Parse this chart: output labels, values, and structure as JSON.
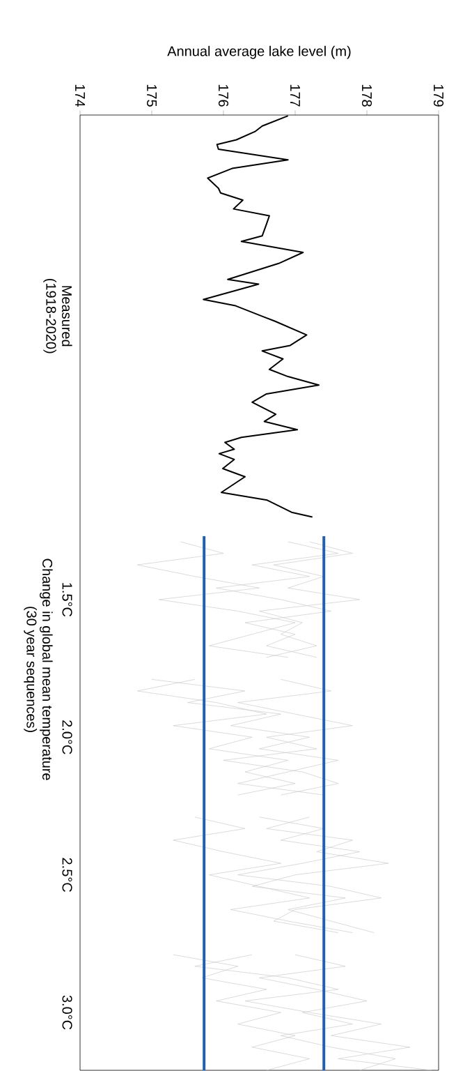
{
  "chart_data": {
    "type": "line",
    "xlabel": "Annual average lake level (m)",
    "ylabel": "Change in global mean temperature (30 year sequences)",
    "xlim": [
      174,
      179
    ],
    "xticks": [
      174,
      175,
      176,
      177,
      178,
      179
    ],
    "ylim": [
      3.21,
      -0.26
    ],
    "yticks": [
      {
        "value": 0.47,
        "label": "Measured (1918-2020)"
      },
      {
        "value": 1.5,
        "label": "1.5°C"
      },
      {
        "value": 2.0,
        "label": "2.0°C"
      },
      {
        "value": 2.5,
        "label": "2.5°C"
      },
      {
        "value": 3.0,
        "label": "3.0°C"
      }
    ],
    "series": [
      {
        "color": "#c8c8c8",
        "values": [
          1.29,
          1.332,
          1.374,
          1.416,
          1.458,
          1.5,
          1.542,
          1.584,
          1.626,
          1.668,
          1.71
        ],
        "x": [
          176.9,
          177.6,
          176.4,
          177.2,
          175.9,
          176.8,
          177.5,
          176.3,
          177.0,
          176.6,
          177.3
        ]
      },
      {
        "color": "#c8c8c8",
        "values": [
          1.29,
          1.332,
          1.374,
          1.416,
          1.458,
          1.5,
          1.542,
          1.584,
          1.626,
          1.668,
          1.71
        ],
        "x": [
          175.4,
          176.0,
          174.8,
          175.6,
          176.5,
          175.1,
          176.2,
          177.0,
          176.4,
          175.8,
          176.9
        ]
      },
      {
        "color": "#c8c8c8",
        "values": [
          1.29,
          1.332,
          1.374,
          1.416,
          1.458,
          1.5,
          1.542,
          1.584,
          1.626,
          1.668,
          1.71
        ],
        "x": [
          177.2,
          177.8,
          176.7,
          177.4,
          176.9,
          177.9,
          176.5,
          177.1,
          176.8,
          177.3,
          176.6
        ]
      },
      {
        "color": "#c8c8c8",
        "values": [
          1.79,
          1.832,
          1.874,
          1.916,
          1.958,
          2.0,
          2.042,
          2.084,
          2.126,
          2.168,
          2.21
        ],
        "x": [
          175.0,
          176.3,
          175.5,
          176.8,
          176.1,
          177.2,
          176.5,
          177.6,
          176.9,
          176.2,
          177.4
        ]
      },
      {
        "color": "#c8c8c8",
        "values": [
          1.79,
          1.832,
          1.874,
          1.916,
          1.958,
          2.0,
          2.042,
          2.084,
          2.126,
          2.168,
          2.21
        ],
        "x": [
          176.8,
          177.5,
          176.2,
          177.0,
          177.8,
          176.6,
          177.3,
          176.0,
          177.1,
          177.6,
          176.8
        ]
      },
      {
        "color": "#c8c8c8",
        "values": [
          1.79,
          1.832,
          1.874,
          1.916,
          1.958,
          2.0,
          2.042,
          2.084,
          2.126,
          2.168,
          2.21
        ],
        "x": [
          175.6,
          174.8,
          175.9,
          176.6,
          175.3,
          176.4,
          175.8,
          176.9,
          176.3,
          177.0,
          176.2
        ]
      },
      {
        "color": "#c8c8c8",
        "values": [
          2.29,
          2.332,
          2.374,
          2.416,
          2.458,
          2.5,
          2.542,
          2.584,
          2.626,
          2.668,
          2.71
        ],
        "x": [
          176.5,
          177.4,
          176.8,
          177.9,
          177.1,
          176.2,
          177.5,
          178.2,
          177.0,
          176.7,
          177.6
        ]
      },
      {
        "color": "#c8c8c8",
        "values": [
          2.29,
          2.332,
          2.374,
          2.416,
          2.458,
          2.5,
          2.542,
          2.584,
          2.626,
          2.668,
          2.71
        ],
        "x": [
          175.6,
          176.3,
          175.3,
          176.0,
          176.8,
          175.8,
          176.5,
          177.2,
          176.1,
          176.9,
          177.8
        ]
      },
      {
        "color": "#c8c8c8",
        "values": [
          2.29,
          2.332,
          2.374,
          2.416,
          2.458,
          2.5,
          2.542,
          2.584,
          2.626,
          2.668,
          2.71
        ],
        "x": [
          177.2,
          176.6,
          177.8,
          177.3,
          178.3,
          177.0,
          176.4,
          177.7,
          176.9,
          177.5,
          178.1
        ]
      },
      {
        "color": "#c8c8c8",
        "values": [
          2.79,
          2.832,
          2.874,
          2.916,
          2.958,
          3.0,
          3.042,
          3.084,
          3.126,
          3.168,
          3.21
        ],
        "x": [
          175.3,
          176.2,
          175.7,
          176.6,
          175.9,
          176.8,
          176.2,
          177.0,
          176.4,
          177.2,
          176.6
        ]
      },
      {
        "color": "#c8c8c8",
        "values": [
          2.79,
          2.832,
          2.874,
          2.916,
          2.958,
          3.0,
          3.042,
          3.084,
          3.126,
          3.168,
          3.21
        ],
        "x": [
          177.0,
          177.7,
          176.5,
          177.3,
          178.0,
          177.1,
          177.8,
          176.8,
          177.5,
          178.4,
          177.9
        ]
      },
      {
        "color": "#c8c8c8",
        "values": [
          2.79,
          2.832,
          2.874,
          2.916,
          2.958,
          3.0,
          3.042,
          3.084,
          3.126,
          3.168,
          3.21
        ],
        "x": [
          176.4,
          175.6,
          176.9,
          177.6,
          176.3,
          177.2,
          178.2,
          177.5,
          178.6,
          177.6,
          178.9
        ]
      },
      {
        "color": "#000000",
        "values": [
          -0.257,
          -0.22,
          -0.2,
          -0.17,
          -0.153,
          -0.136,
          -0.097,
          -0.066,
          -0.031,
          0.006,
          0.023,
          0.049,
          0.081,
          0.106,
          0.136,
          0.179,
          0.199,
          0.239,
          0.279,
          0.337,
          0.354,
          0.41,
          0.433,
          0.471,
          0.489,
          0.539,
          0.577,
          0.597,
          0.626,
          0.664,
          0.69,
          0.721,
          0.753,
          0.783,
          0.827,
          0.853,
          0.883,
          0.911,
          0.929,
          0.954,
          0.97,
          0.991,
          1.024,
          1.054,
          1.111,
          1.139,
          1.183,
          1.2
        ],
        "x": [
          176.9,
          176.54,
          176.44,
          176.18,
          175.91,
          175.93,
          176.9,
          176.12,
          175.78,
          175.93,
          175.96,
          176.27,
          176.14,
          176.64,
          176.6,
          176.54,
          176.25,
          177.11,
          176.77,
          176.06,
          176.49,
          175.72,
          176.17,
          176.54,
          176.72,
          177.16,
          176.93,
          176.54,
          176.83,
          176.64,
          176.9,
          177.33,
          176.6,
          176.4,
          176.73,
          176.57,
          177.03,
          176.25,
          176.02,
          176.15,
          175.94,
          176.15,
          175.99,
          176.3,
          175.97,
          176.61,
          176.95,
          177.24
        ]
      },
      {
        "color": "#1f5fb4",
        "values": [
          1.27,
          3.21
        ],
        "x": [
          175.73,
          175.73
        ]
      },
      {
        "color": "#1f5fb4",
        "values": [
          1.27,
          3.21
        ],
        "x": [
          177.4,
          177.4
        ]
      }
    ]
  }
}
